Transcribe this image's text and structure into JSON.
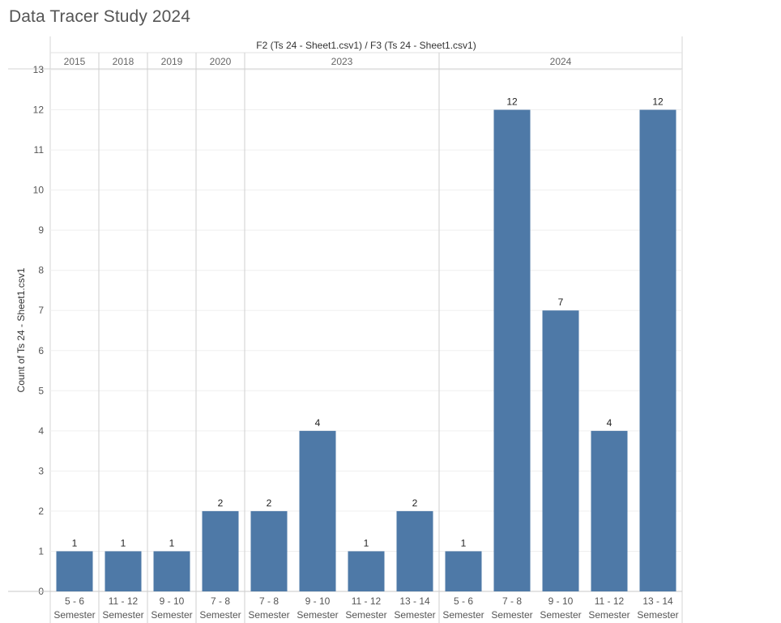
{
  "page_title": "Data Tracer Study 2024",
  "chart_data": {
    "type": "bar",
    "title": "Data Tracer Study 2024",
    "column_header": "F2 (Ts 24 - Sheet1.csv1)  /  F3 (Ts 24 - Sheet1.csv1)",
    "ylabel": "Count of Ts 24 - Sheet1.csv1",
    "xlabel": "",
    "ylim": [
      0,
      13
    ],
    "yticks": [
      0,
      1,
      2,
      3,
      4,
      5,
      6,
      7,
      8,
      9,
      10,
      11,
      12,
      13
    ],
    "color": "#4e79a7",
    "groups": [
      {
        "year": "2015",
        "bars": [
          {
            "category": "5 - 6",
            "sublabel": "Semester",
            "value": 1
          }
        ]
      },
      {
        "year": "2018",
        "bars": [
          {
            "category": "11 - 12",
            "sublabel": "Semester",
            "value": 1
          }
        ]
      },
      {
        "year": "2019",
        "bars": [
          {
            "category": "9 - 10",
            "sublabel": "Semester",
            "value": 1
          }
        ]
      },
      {
        "year": "2020",
        "bars": [
          {
            "category": "7 - 8",
            "sublabel": "Semester",
            "value": 2
          }
        ]
      },
      {
        "year": "2023",
        "bars": [
          {
            "category": "7 - 8",
            "sublabel": "Semester",
            "value": 2
          },
          {
            "category": "9 - 10",
            "sublabel": "Semester",
            "value": 4
          },
          {
            "category": "11 - 12",
            "sublabel": "Semester",
            "value": 1
          },
          {
            "category": "13 - 14",
            "sublabel": "Semester",
            "value": 2
          }
        ]
      },
      {
        "year": "2024",
        "bars": [
          {
            "category": "5 - 6",
            "sublabel": "Semester",
            "value": 1
          },
          {
            "category": "7 - 8",
            "sublabel": "Semester",
            "value": 12
          },
          {
            "category": "9 - 10",
            "sublabel": "Semester",
            "value": 7
          },
          {
            "category": "11 - 12",
            "sublabel": "Semester",
            "value": 4
          },
          {
            "category": "13 - 14",
            "sublabel": "Semester",
            "value": 12
          }
        ]
      }
    ]
  }
}
